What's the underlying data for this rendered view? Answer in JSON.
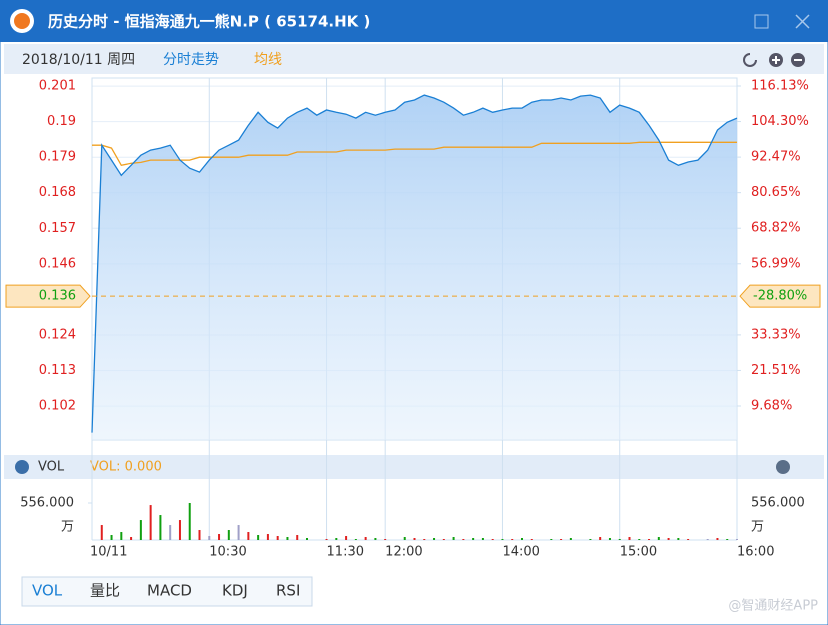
{
  "window": {
    "title": "历史分时 - 恒指海通九一熊N.P ( 65174.HK )"
  },
  "toolbar": {
    "date": "2018/10/11 周四",
    "tabs": [
      "分时走势",
      "均线"
    ]
  },
  "chart_data": {
    "type": "line",
    "x": [
      "09:30",
      "09:35",
      "09:40",
      "09:45",
      "09:50",
      "09:55",
      "10:00",
      "10:05",
      "10:10",
      "10:15",
      "10:20",
      "10:25",
      "10:30",
      "10:35",
      "10:40",
      "10:45",
      "10:50",
      "10:55",
      "11:00",
      "11:05",
      "11:10",
      "11:15",
      "11:20",
      "11:25",
      "11:30",
      "11:35",
      "11:40",
      "11:45",
      "11:50",
      "11:55",
      "12:00",
      "13:05",
      "13:10",
      "13:15",
      "13:20",
      "13:25",
      "13:30",
      "13:35",
      "13:40",
      "13:45",
      "13:50",
      "13:55",
      "14:00",
      "14:05",
      "14:10",
      "14:15",
      "14:20",
      "14:25",
      "14:30",
      "14:35",
      "14:40",
      "14:45",
      "14:50",
      "14:55",
      "15:00",
      "15:05",
      "15:10",
      "15:15",
      "15:20",
      "15:25",
      "15:30",
      "15:35",
      "15:40",
      "15:45",
      "15:50",
      "15:55",
      "16:00"
    ],
    "series": [
      {
        "color": "#1a7fd4",
        "values": [
          0.0938,
          0.1827,
          0.1781,
          0.1734,
          0.1765,
          0.1796,
          0.1812,
          0.1818,
          0.1827,
          0.1781,
          0.1756,
          0.1744,
          0.1781,
          0.1812,
          0.1827,
          0.1843,
          0.1889,
          0.1929,
          0.1898,
          0.188,
          0.1911,
          0.1929,
          0.1942,
          0.192,
          0.1936,
          0.1929,
          0.1923,
          0.1911,
          0.1929,
          0.192,
          0.1929,
          0.1936,
          0.196,
          0.1967,
          0.1982,
          0.1973,
          0.196,
          0.1942,
          0.192,
          0.1929,
          0.1942,
          0.1929,
          0.1936,
          0.1942,
          0.1942,
          0.196,
          0.1967,
          0.1967,
          0.1973,
          0.1967,
          0.1979,
          0.1982,
          0.1973,
          0.1929,
          0.1951,
          0.1942,
          0.1929,
          0.1889,
          0.1843,
          0.1781,
          0.1765,
          0.1775,
          0.1781,
          0.1812,
          0.1874,
          0.1898,
          0.1911
        ]
      },
      {
        "color": "#f0a020",
        "values": [
          0.1827,
          0.1827,
          0.1818,
          0.1765,
          0.1771,
          0.1774,
          0.1781,
          0.1781,
          0.1781,
          0.1781,
          0.1781,
          0.179,
          0.179,
          0.179,
          0.179,
          0.179,
          0.1796,
          0.1796,
          0.1796,
          0.1796,
          0.1796,
          0.1806,
          0.1806,
          0.1806,
          0.1806,
          0.1806,
          0.1812,
          0.1812,
          0.1812,
          0.1812,
          0.1812,
          0.1815,
          0.1815,
          0.1815,
          0.1815,
          0.1815,
          0.1821,
          0.1821,
          0.1821,
          0.1821,
          0.1821,
          0.1821,
          0.1821,
          0.1821,
          0.1821,
          0.1821,
          0.1833,
          0.1833,
          0.1833,
          0.1833,
          0.1833,
          0.1833,
          0.1833,
          0.1833,
          0.1833,
          0.1833,
          0.1836,
          0.1836,
          0.1836,
          0.1836,
          0.1836,
          0.1836,
          0.1836,
          0.1836,
          0.1836,
          0.1836,
          0.1836
        ]
      }
    ],
    "ylim": [
      0.0915,
      0.2035
    ],
    "yticks": [
      0.201,
      0.19,
      0.179,
      0.168,
      0.157,
      0.146,
      0.124,
      0.113,
      0.102
    ],
    "y2lim": [
      -1.63,
      118.79
    ],
    "y2ticks": [
      {
        "value": 116.13,
        "label": "116.13%"
      },
      {
        "value": 104.3,
        "label": "104.30%"
      },
      {
        "value": 92.47,
        "label": "92.47%"
      },
      {
        "value": 80.65,
        "label": "80.65%"
      },
      {
        "value": 68.82,
        "label": "68.82%"
      },
      {
        "value": 56.99,
        "label": "56.99%"
      },
      {
        "value": 33.33,
        "label": "33.33%"
      },
      {
        "value": 21.51,
        "label": "21.51%"
      },
      {
        "value": 9.68,
        "label": "9.68%"
      }
    ],
    "reference": {
      "value": 0.136,
      "change": {
        "value": -28.8,
        "label": "-28.80%"
      }
    },
    "xticks": [
      {
        "value": "09:30",
        "label": "10/11"
      },
      "10:30",
      "11:30",
      "12:00",
      "14:00",
      "15:00",
      "16:00"
    ],
    "volume": {
      "title": "VOL",
      "readout": "VOL: 0.000",
      "ylim": [
        0,
        556
      ],
      "yticks": [
        {
          "value": 556,
          "label": "556.000"
        }
      ],
      "unit": "万",
      "values": [
        0,
        225,
        75,
        120,
        45,
        300,
        525,
        375,
        225,
        300,
        556,
        150,
        60,
        90,
        150,
        225,
        120,
        75,
        90,
        60,
        45,
        75,
        30,
        0,
        15,
        30,
        60,
        15,
        45,
        30,
        15,
        0,
        45,
        30,
        15,
        30,
        15,
        45,
        15,
        30,
        30,
        15,
        15,
        15,
        30,
        15,
        0,
        15,
        15,
        30,
        0,
        15,
        45,
        30,
        15,
        45,
        15,
        15,
        45,
        30,
        30,
        15,
        0,
        15,
        30,
        15,
        15
      ],
      "colors": [
        "#e02020",
        "#e02020",
        "#10a010",
        "#10a010",
        "#e02020",
        "#10a010",
        "#e02020",
        "#10a010",
        "#a0a0c8",
        "#e02020",
        "#10a010",
        "#e02020",
        "#a0a0c8",
        "#e02020",
        "#10a010",
        "#a0a0c8",
        "#e02020",
        "#10a010",
        "#e02020",
        "#e02020",
        "#10a010",
        "#e02020",
        "#10a010",
        "#e02020",
        "#e02020",
        "#10a010",
        "#e02020",
        "#10a010",
        "#e02020",
        "#10a010",
        "#e02020",
        "#10a010",
        "#10a010",
        "#e02020",
        "#e02020",
        "#10a010",
        "#e02020",
        "#10a010",
        "#e02020",
        "#10a010",
        "#10a010",
        "#e02020",
        "#10a010",
        "#e02020",
        "#10a010",
        "#e02020",
        "#10a010",
        "#10a010",
        "#e02020",
        "#10a010",
        "#e02020",
        "#10a010",
        "#e02020",
        "#10a010",
        "#10a010",
        "#e02020",
        "#10a010",
        "#e02020",
        "#10a010",
        "#e02020",
        "#10a010",
        "#e02020",
        "#10a010",
        "#a0a0c8",
        "#e02020",
        "#10a010",
        "#a0a0c8"
      ]
    }
  },
  "indicator_tabs": [
    "VOL",
    "量比",
    "MACD",
    "KDJ",
    "RSI"
  ],
  "watermark": "@智通财经APP"
}
